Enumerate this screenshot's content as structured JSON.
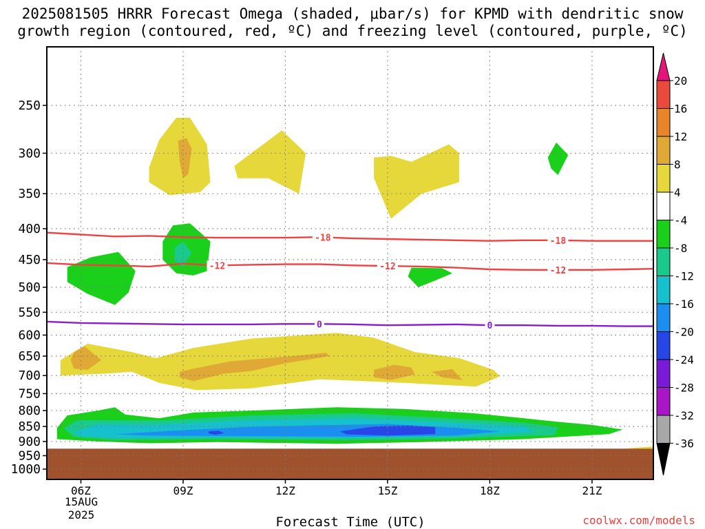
{
  "title": {
    "line1": "2025081505 HRRR Forecast Omega (shaded, μbar/s) for KPMD with dendritic snow",
    "line2": "growth region (contoured, red, ºC) and freezing level (contoured, purple, ºC)"
  },
  "xlabel": "Forecast Time (UTC)",
  "date_labels": [
    "15AUG",
    "2025"
  ],
  "watermark": "coolwx.com/models",
  "colors": {
    "omega_pos_4_8": "#e6d83a",
    "omega_pos_8_12": "#e0a834",
    "omega_pos_12_16": "#e8842a",
    "omega_pos_16_20": "#ea4a3c",
    "omega_pos_gt20": "#e4147a",
    "omega_neutral": "#ffffff",
    "omega_neg_4_8": "#1ad01a",
    "omega_neg_8_12": "#1ac98c",
    "omega_neg_12_16": "#16c0cc",
    "omega_neg_16_20": "#1a8ff0",
    "omega_neg_20_24": "#2845e8",
    "omega_neg_24_28": "#7a1ad8",
    "omega_neg_28_32": "#a816c8",
    "omega_neg_32_36": "#a8a8a8",
    "omega_neg_lt36": "#000000",
    "dgz_contour": "#f04040",
    "freezing_contour": "#8a1ad0",
    "terrain": "#a0522d"
  },
  "chart_data": {
    "type": "heatmap",
    "x_axis": {
      "ticks": [
        "06Z",
        "09Z",
        "12Z",
        "15Z",
        "18Z",
        "21Z"
      ],
      "range_hours_utc": [
        5.0,
        22.8
      ]
    },
    "y_axis": {
      "ticks": [
        250,
        300,
        350,
        400,
        450,
        500,
        550,
        600,
        650,
        700,
        750,
        800,
        850,
        900,
        950,
        1000
      ],
      "units": "mb",
      "range": [
        200,
        1040
      ],
      "inverted": true,
      "scale": "log"
    },
    "grid": true,
    "colorbar": {
      "labels": [
        "20",
        "16",
        "12",
        "8",
        "4",
        "-4",
        "-8",
        "-12",
        "-16",
        "-20",
        "-24",
        "-28",
        "-32",
        "-36"
      ],
      "units": "μbar/s"
    },
    "contours": [
      {
        "series": "dendritic snow growth region",
        "value": -18,
        "label": "-18",
        "points": [
          [
            5.0,
            406
          ],
          [
            6,
            409
          ],
          [
            7,
            412
          ],
          [
            8,
            411
          ],
          [
            9,
            413
          ],
          [
            10,
            414
          ],
          [
            11,
            414
          ],
          [
            12,
            414
          ],
          [
            13,
            413
          ],
          [
            14,
            415
          ],
          [
            15,
            416
          ],
          [
            16,
            417
          ],
          [
            17,
            418
          ],
          [
            18,
            419
          ],
          [
            19,
            418
          ],
          [
            20,
            418
          ],
          [
            21,
            419
          ],
          [
            22,
            419
          ],
          [
            22.8,
            419
          ]
        ],
        "label_x": [
          13.1,
          20.0
        ]
      },
      {
        "series": "dendritic snow growth region",
        "value": -12,
        "label": "-12",
        "points": [
          [
            5.0,
            456
          ],
          [
            6,
            459
          ],
          [
            7,
            460
          ],
          [
            8,
            462
          ],
          [
            9,
            457
          ],
          [
            10,
            460
          ],
          [
            11,
            459
          ],
          [
            12,
            458
          ],
          [
            13,
            458
          ],
          [
            14,
            460
          ],
          [
            15,
            461
          ],
          [
            16,
            462
          ],
          [
            17,
            464
          ],
          [
            18,
            467
          ],
          [
            19,
            468
          ],
          [
            20,
            468
          ],
          [
            21,
            468
          ],
          [
            22,
            467
          ],
          [
            22.8,
            466
          ]
        ],
        "label_x": [
          10.0,
          15.0,
          20.0
        ]
      },
      {
        "series": "freezing level",
        "value": 0,
        "label": "0",
        "points": [
          [
            5.0,
            570
          ],
          [
            6,
            573
          ],
          [
            7,
            574
          ],
          [
            8,
            575
          ],
          [
            9,
            576
          ],
          [
            10,
            576
          ],
          [
            11,
            576
          ],
          [
            12,
            575
          ],
          [
            13,
            575
          ],
          [
            14,
            576
          ],
          [
            15,
            578
          ],
          [
            16,
            577
          ],
          [
            17,
            576
          ],
          [
            18,
            578
          ],
          [
            19,
            578
          ],
          [
            20,
            579
          ],
          [
            21,
            579
          ],
          [
            22,
            580
          ],
          [
            22.8,
            580
          ]
        ],
        "label_x": [
          13.0,
          18.0
        ]
      }
    ],
    "shaded_regions": [
      {
        "level": "4",
        "points": [
          [
            8.0,
            317
          ],
          [
            8.3,
            285
          ],
          [
            8.8,
            262
          ],
          [
            9.2,
            262
          ],
          [
            9.7,
            290
          ],
          [
            9.8,
            335
          ],
          [
            9.5,
            348
          ],
          [
            8.6,
            352
          ],
          [
            8.0,
            335
          ]
        ]
      },
      {
        "level": "8",
        "points": [
          [
            8.85,
            286
          ],
          [
            9.1,
            283
          ],
          [
            9.25,
            295
          ],
          [
            9.15,
            325
          ],
          [
            9.0,
            330
          ],
          [
            8.9,
            310
          ]
        ]
      },
      {
        "level": "4",
        "points": [
          [
            10.5,
            315
          ],
          [
            11.0,
            300
          ],
          [
            11.9,
            275
          ],
          [
            12.6,
            300
          ],
          [
            12.4,
            350
          ],
          [
            11.5,
            330
          ],
          [
            10.6,
            330
          ]
        ]
      },
      {
        "level": "4",
        "points": [
          [
            14.6,
            305
          ],
          [
            15.1,
            303
          ],
          [
            15.7,
            310
          ],
          [
            16.8,
            290
          ],
          [
            17.1,
            300
          ],
          [
            17.1,
            335
          ],
          [
            16.0,
            350
          ],
          [
            15.1,
            385
          ],
          [
            14.6,
            330
          ]
        ]
      },
      {
        "level": "-4",
        "points": [
          [
            19.7,
            305
          ],
          [
            19.95,
            288
          ],
          [
            20.3,
            302
          ],
          [
            20.0,
            326
          ],
          [
            19.8,
            318
          ]
        ]
      },
      {
        "level": "-4",
        "points": [
          [
            8.4,
            420
          ],
          [
            8.7,
            395
          ],
          [
            9.2,
            392
          ],
          [
            9.8,
            420
          ],
          [
            9.7,
            470
          ],
          [
            9.3,
            478
          ],
          [
            8.8,
            474
          ],
          [
            8.4,
            450
          ]
        ]
      },
      {
        "level": "-8",
        "points": [
          [
            8.75,
            430
          ],
          [
            9.0,
            420
          ],
          [
            9.25,
            438
          ],
          [
            9.0,
            462
          ],
          [
            8.75,
            452
          ]
        ]
      },
      {
        "level": "-4",
        "points": [
          [
            5.6,
            463
          ],
          [
            6.3,
            446
          ],
          [
            7.1,
            437
          ],
          [
            7.6,
            470
          ],
          [
            7.4,
            510
          ],
          [
            7.0,
            535
          ],
          [
            6.2,
            513
          ],
          [
            5.6,
            490
          ]
        ]
      },
      {
        "level": "-4",
        "points": [
          [
            15.7,
            464
          ],
          [
            16.6,
            465
          ],
          [
            16.9,
            474
          ],
          [
            16.3,
            490
          ],
          [
            15.9,
            500
          ],
          [
            15.6,
            480
          ]
        ]
      },
      {
        "level": "4",
        "points": [
          [
            5.4,
            660
          ],
          [
            6.2,
            620
          ],
          [
            7.5,
            640
          ],
          [
            8.2,
            655
          ],
          [
            9.3,
            630
          ],
          [
            11.0,
            608
          ],
          [
            13.5,
            595
          ],
          [
            14.6,
            606
          ],
          [
            15.8,
            640
          ],
          [
            17.1,
            655
          ],
          [
            18.1,
            685
          ],
          [
            18.3,
            702
          ],
          [
            17.6,
            730
          ],
          [
            15.5,
            720
          ],
          [
            13.0,
            710
          ],
          [
            11.0,
            735
          ],
          [
            9.4,
            740
          ],
          [
            8.3,
            720
          ],
          [
            7.5,
            690
          ],
          [
            6.7,
            695
          ],
          [
            5.4,
            700
          ]
        ]
      },
      {
        "level": "8",
        "points": [
          [
            5.8,
            640
          ],
          [
            6.1,
            626
          ],
          [
            6.6,
            660
          ],
          [
            6.2,
            685
          ],
          [
            5.8,
            682
          ],
          [
            5.7,
            660
          ]
        ]
      },
      {
        "level": "8",
        "points": [
          [
            8.9,
            690
          ],
          [
            9.4,
            680
          ],
          [
            10.4,
            663
          ],
          [
            11.5,
            655
          ],
          [
            12.2,
            650
          ],
          [
            13.2,
            642
          ],
          [
            13.3,
            650
          ],
          [
            12.0,
            668
          ],
          [
            11.0,
            688
          ],
          [
            10.2,
            695
          ],
          [
            9.3,
            715
          ],
          [
            8.9,
            705
          ]
        ]
      },
      {
        "level": "8",
        "points": [
          [
            14.6,
            685
          ],
          [
            15.2,
            672
          ],
          [
            15.7,
            679
          ],
          [
            15.8,
            697
          ],
          [
            15.1,
            712
          ],
          [
            14.6,
            705
          ]
        ]
      },
      {
        "level": "8",
        "points": [
          [
            16.3,
            690
          ],
          [
            16.9,
            683
          ],
          [
            17.2,
            712
          ],
          [
            16.6,
            705
          ]
        ]
      },
      {
        "level": "-4",
        "points": [
          [
            5.3,
            855
          ],
          [
            5.6,
            815
          ],
          [
            6.5,
            800
          ],
          [
            7.0,
            790
          ],
          [
            7.3,
            812
          ],
          [
            8.3,
            824
          ],
          [
            9.3,
            806
          ],
          [
            11.0,
            800
          ],
          [
            13.5,
            790
          ],
          [
            15.5,
            795
          ],
          [
            17.5,
            808
          ],
          [
            19.2,
            826
          ],
          [
            20.0,
            835
          ],
          [
            21.0,
            845
          ],
          [
            21.9,
            860
          ],
          [
            21.5,
            875
          ],
          [
            19.0,
            892
          ],
          [
            16.0,
            902
          ],
          [
            13.5,
            908
          ],
          [
            10.0,
            902
          ],
          [
            8.0,
            906
          ],
          [
            6.5,
            900
          ],
          [
            5.3,
            892
          ]
        ]
      },
      {
        "level": "-8",
        "points": [
          [
            5.5,
            855
          ],
          [
            5.9,
            830
          ],
          [
            7.0,
            830
          ],
          [
            8.5,
            830
          ],
          [
            11.0,
            815
          ],
          [
            14.0,
            808
          ],
          [
            17.0,
            825
          ],
          [
            19.0,
            838
          ],
          [
            20.0,
            852
          ],
          [
            19.9,
            878
          ],
          [
            17.0,
            890
          ],
          [
            14.0,
            895
          ],
          [
            10.0,
            892
          ],
          [
            7.0,
            895
          ],
          [
            5.8,
            885
          ]
        ]
      },
      {
        "level": "-12",
        "points": [
          [
            5.8,
            868
          ],
          [
            6.5,
            843
          ],
          [
            8.0,
            845
          ],
          [
            11.0,
            830
          ],
          [
            14.0,
            823
          ],
          [
            17.0,
            838
          ],
          [
            19.0,
            850
          ],
          [
            19.3,
            868
          ],
          [
            17.0,
            882
          ],
          [
            14.0,
            888
          ],
          [
            10.0,
            886
          ],
          [
            7.0,
            888
          ],
          [
            6.0,
            882
          ]
        ]
      },
      {
        "level": "-16",
        "points": [
          [
            7.0,
            876
          ],
          [
            9.0,
            862
          ],
          [
            11.0,
            851
          ],
          [
            13.0,
            846
          ],
          [
            15.0,
            842
          ],
          [
            17.0,
            854
          ],
          [
            18.3,
            866
          ],
          [
            17.0,
            880
          ],
          [
            14.0,
            884
          ],
          [
            11.0,
            882
          ],
          [
            8.0,
            880
          ]
        ]
      },
      {
        "level": "-20",
        "points": [
          [
            13.6,
            866
          ],
          [
            14.6,
            850
          ],
          [
            15.6,
            847
          ],
          [
            16.4,
            852
          ],
          [
            16.4,
            875
          ],
          [
            15.0,
            880
          ],
          [
            13.8,
            876
          ]
        ]
      },
      {
        "level": "-20",
        "points": [
          [
            9.75,
            866
          ],
          [
            10.05,
            864
          ],
          [
            10.2,
            872
          ],
          [
            9.95,
            877
          ],
          [
            9.75,
            873
          ]
        ]
      },
      {
        "level": "4",
        "points": [
          [
            21.9,
            925
          ],
          [
            22.8,
            917
          ],
          [
            22.8,
            925
          ]
        ]
      }
    ],
    "terrain": {
      "from_mb": 925,
      "to_mb": 1040
    }
  }
}
